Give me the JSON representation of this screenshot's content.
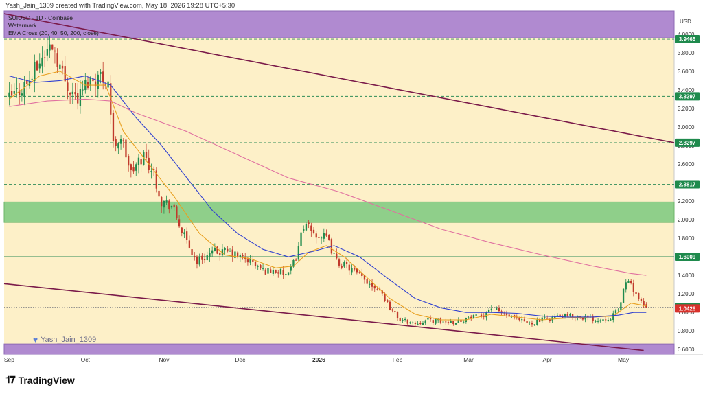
{
  "header": {
    "creator_line": "Yash_Jain_1309 created with TradingView.com, May 18, 2026 19:28 UTC+5:30"
  },
  "legend": {
    "symbol": "SUIUSD · 1D · Coinbase",
    "watermark": "Watermark",
    "indicator": "EMA Cross (20, 40, 50, 200, close)"
  },
  "watermark_text": "Yash_Jain_1309",
  "footer": {
    "brand": "TradingView",
    "logo_glyph": "𝟏𝟕"
  },
  "colors": {
    "background": "#fdf0c8",
    "purple_zone": "#b08ad0",
    "green_zone": "#8fcf8a",
    "channel": "#7a1a4a",
    "ema20": "#e8a020",
    "ema50": "#3040d0",
    "ema200": "#e070a0",
    "candle_up": "#1f8a4d",
    "candle_down": "#c0392b",
    "level_label_bg": "#1f8a4d",
    "price_label_bg": "#d8322c"
  },
  "chart_data": {
    "type": "candlestick",
    "currency_label": "USD",
    "ylim": [
      0.55,
      4.25
    ],
    "y_ticks": [
      "4.0000",
      "3.8000",
      "3.6000",
      "3.4000",
      "3.2000",
      "3.0000",
      "2.8000",
      "2.6000",
      "2.4000",
      "2.2000",
      "2.0000",
      "1.8000",
      "1.6000",
      "1.4000",
      "1.2000",
      "1.0000",
      "0.8000",
      "0.6000"
    ],
    "y_tick_values": [
      4.0,
      3.8,
      3.6,
      3.4,
      3.2,
      3.0,
      2.8,
      2.6,
      2.4,
      2.2,
      2.0,
      1.8,
      1.6,
      1.4,
      1.2,
      1.0,
      0.8,
      0.6
    ],
    "x_tick_labels": [
      "Sep",
      "Oct",
      "Nov",
      "Dec",
      "2026",
      "Feb",
      "Mar",
      "Apr",
      "May"
    ],
    "x_tick_days": [
      0,
      30,
      61,
      91,
      122,
      153,
      181,
      212,
      242
    ],
    "x_range_days": [
      -2,
      262
    ],
    "zones": [
      {
        "type": "supply",
        "low": 3.96,
        "high": 4.25
      },
      {
        "type": "demand",
        "low": 1.97,
        "high": 2.19
      },
      {
        "type": "demand",
        "low": 0.55,
        "high": 0.66
      }
    ],
    "levels": [
      {
        "value": 3.9465,
        "label": "3.9465",
        "style": "dashed"
      },
      {
        "value": 3.3297,
        "label": "3.3297",
        "style": "dashed"
      },
      {
        "value": 2.8297,
        "label": "2.8297",
        "style": "dashed"
      },
      {
        "value": 2.3817,
        "label": "2.3817",
        "style": "dashed"
      },
      {
        "value": 1.6009,
        "label": "1.6009",
        "style": "solid"
      },
      {
        "value": 1.0576,
        "label": "1.0576",
        "style": "dotted"
      }
    ],
    "current_price": {
      "value": 1.0426,
      "label": "1.0426"
    },
    "channel": [
      {
        "name": "upper",
        "points": [
          [
            -2,
            4.22
          ],
          [
            262,
            2.83
          ]
        ]
      },
      {
        "name": "lower",
        "points": [
          [
            -2,
            1.31
          ],
          [
            250,
            0.59
          ]
        ]
      }
    ],
    "ohlc_anchor_close": [
      [
        0,
        3.3
      ],
      [
        8,
        3.5
      ],
      [
        13,
        3.75
      ],
      [
        17,
        3.9
      ],
      [
        22,
        3.5
      ],
      [
        27,
        3.3
      ],
      [
        31,
        3.5
      ],
      [
        36,
        3.55
      ],
      [
        39,
        3.5
      ],
      [
        41,
        2.8
      ],
      [
        44,
        2.9
      ],
      [
        48,
        2.5
      ],
      [
        53,
        2.7
      ],
      [
        57,
        2.5
      ],
      [
        60,
        2.2
      ],
      [
        64,
        2.15
      ],
      [
        67,
        1.95
      ],
      [
        70,
        1.75
      ],
      [
        74,
        1.55
      ],
      [
        77,
        1.6
      ],
      [
        81,
        1.65
      ],
      [
        86,
        1.65
      ],
      [
        91,
        1.6
      ],
      [
        95,
        1.55
      ],
      [
        100,
        1.45
      ],
      [
        105,
        1.45
      ],
      [
        110,
        1.4
      ],
      [
        113,
        1.6
      ],
      [
        116,
        1.95
      ],
      [
        120,
        1.85
      ],
      [
        125,
        1.8
      ],
      [
        129,
        1.55
      ],
      [
        134,
        1.48
      ],
      [
        140,
        1.35
      ],
      [
        146,
        1.25
      ],
      [
        150,
        1.05
      ],
      [
        154,
        0.92
      ],
      [
        160,
        0.88
      ],
      [
        165,
        0.92
      ],
      [
        170,
        0.9
      ],
      [
        176,
        0.9
      ],
      [
        181,
        0.94
      ],
      [
        186,
        0.96
      ],
      [
        190,
        1.05
      ],
      [
        195,
        0.98
      ],
      [
        200,
        0.92
      ],
      [
        205,
        0.88
      ],
      [
        210,
        0.92
      ],
      [
        215,
        0.95
      ],
      [
        220,
        0.96
      ],
      [
        226,
        0.95
      ],
      [
        232,
        0.92
      ],
      [
        237,
        0.95
      ],
      [
        240,
        1.02
      ],
      [
        243,
        1.35
      ],
      [
        246,
        1.25
      ],
      [
        249,
        1.1
      ],
      [
        251,
        1.04
      ]
    ],
    "ema_series": [
      {
        "name": "EMA 20",
        "points": [
          [
            0,
            3.3
          ],
          [
            12,
            3.55
          ],
          [
            20,
            3.6
          ],
          [
            30,
            3.45
          ],
          [
            38,
            3.45
          ],
          [
            45,
            2.95
          ],
          [
            55,
            2.6
          ],
          [
            65,
            2.25
          ],
          [
            75,
            1.85
          ],
          [
            85,
            1.62
          ],
          [
            95,
            1.58
          ],
          [
            105,
            1.48
          ],
          [
            112,
            1.5
          ],
          [
            118,
            1.65
          ],
          [
            125,
            1.72
          ],
          [
            132,
            1.6
          ],
          [
            140,
            1.4
          ],
          [
            150,
            1.15
          ],
          [
            160,
            0.98
          ],
          [
            170,
            0.92
          ],
          [
            180,
            0.92
          ],
          [
            190,
            0.98
          ],
          [
            200,
            0.95
          ],
          [
            210,
            0.92
          ],
          [
            220,
            0.94
          ],
          [
            230,
            0.95
          ],
          [
            238,
            0.96
          ],
          [
            245,
            1.1
          ],
          [
            251,
            1.07
          ]
        ]
      },
      {
        "name": "EMA 50",
        "points": [
          [
            0,
            3.55
          ],
          [
            10,
            3.48
          ],
          [
            20,
            3.5
          ],
          [
            30,
            3.55
          ],
          [
            40,
            3.45
          ],
          [
            50,
            3.1
          ],
          [
            60,
            2.8
          ],
          [
            70,
            2.45
          ],
          [
            80,
            2.1
          ],
          [
            90,
            1.85
          ],
          [
            100,
            1.68
          ],
          [
            110,
            1.6
          ],
          [
            120,
            1.66
          ],
          [
            128,
            1.72
          ],
          [
            138,
            1.6
          ],
          [
            150,
            1.35
          ],
          [
            160,
            1.15
          ],
          [
            170,
            1.05
          ],
          [
            180,
            1.0
          ],
          [
            190,
            1.0
          ],
          [
            200,
            0.99
          ],
          [
            210,
            0.96
          ],
          [
            220,
            0.95
          ],
          [
            230,
            0.95
          ],
          [
            240,
            0.97
          ],
          [
            246,
            1.0
          ],
          [
            251,
            1.0
          ]
        ]
      },
      {
        "name": "EMA 200",
        "points": [
          [
            0,
            3.22
          ],
          [
            15,
            3.28
          ],
          [
            30,
            3.3
          ],
          [
            40,
            3.28
          ],
          [
            50,
            3.15
          ],
          [
            70,
            2.95
          ],
          [
            90,
            2.7
          ],
          [
            110,
            2.45
          ],
          [
            130,
            2.3
          ],
          [
            150,
            2.1
          ],
          [
            170,
            1.9
          ],
          [
            190,
            1.75
          ],
          [
            210,
            1.62
          ],
          [
            230,
            1.5
          ],
          [
            245,
            1.42
          ],
          [
            251,
            1.4
          ]
        ]
      }
    ]
  }
}
